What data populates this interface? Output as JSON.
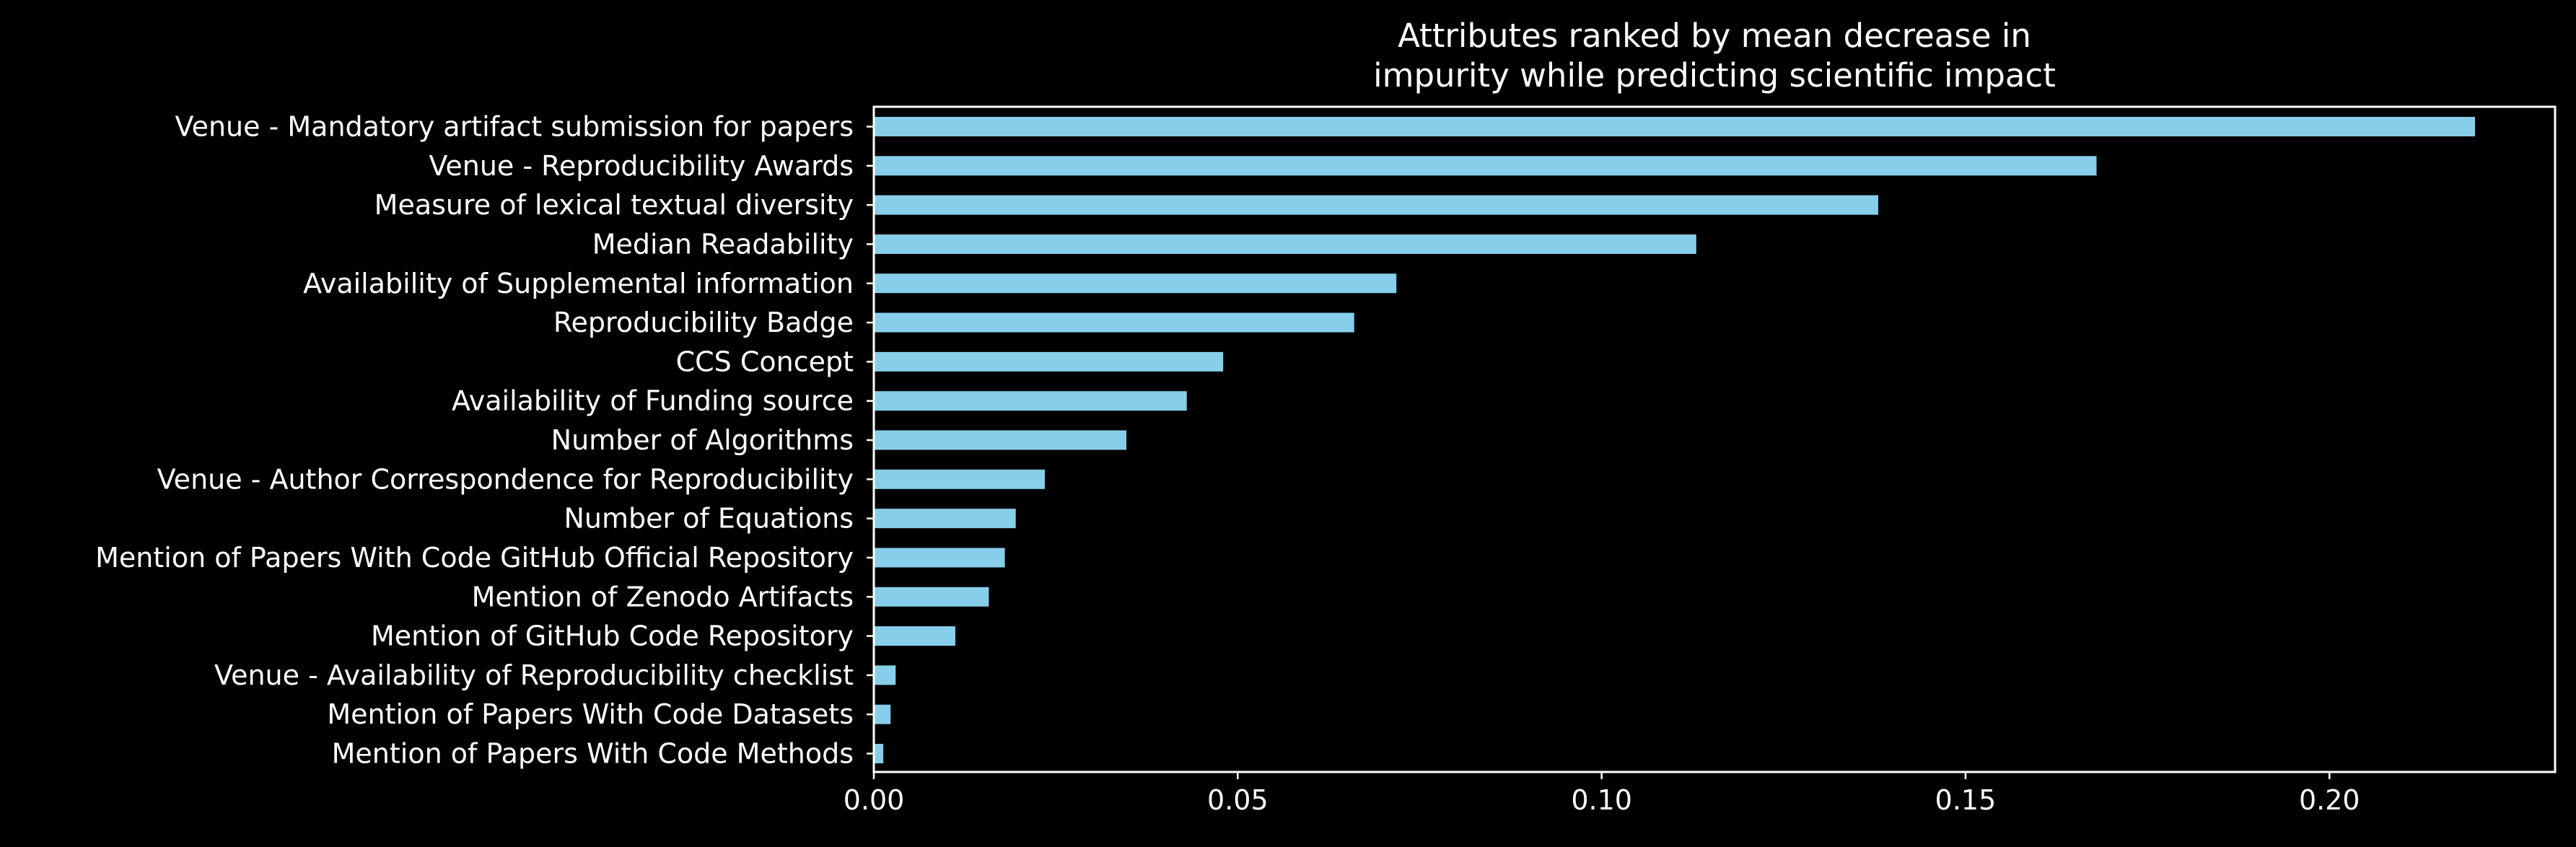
{
  "chart_data": {
    "type": "bar",
    "orientation": "horizontal",
    "title": "Attributes ranked by mean decrease in\nimpurity while predicting scientific impact",
    "xlabel": "",
    "ylabel": "",
    "categories": [
      "Venue - Mandatory artifact submission for papers",
      "Venue - Reproducibility Awards",
      "Measure of lexical textual diversity",
      "Median Readability",
      "Availability of Supplemental information",
      "Reproducibility Badge",
      "CCS Concept",
      "Availability of Funding source",
      "Number of Algorithms",
      "Venue - Author Correspondence for Reproducibility",
      "Number of Equations",
      "Mention of Papers With Code GitHub Official Repository",
      "Mention of Zenodo Artifacts",
      "Mention of GitHub Code Repository",
      "Venue - Availability of Reproducibility checklist",
      "Mention of Papers With Code Datasets",
      "Mention of Papers With Code Methods"
    ],
    "values": [
      0.22,
      0.168,
      0.138,
      0.113,
      0.0718,
      0.066,
      0.048,
      0.043,
      0.0347,
      0.0235,
      0.0195,
      0.018,
      0.0158,
      0.0112,
      0.003,
      0.0023,
      0.0013
    ],
    "xlim": [
      0,
      0.231
    ],
    "xticks": [
      0.0,
      0.05,
      0.1,
      0.15,
      0.2
    ],
    "xtick_labels": [
      "0.00",
      "0.05",
      "0.10",
      "0.15",
      "0.20"
    ],
    "grid": false,
    "legend": false,
    "colors": {
      "background": "#000000",
      "bar": "#87ceeb",
      "axis": "#ffffff",
      "text": "#ffffff"
    }
  }
}
